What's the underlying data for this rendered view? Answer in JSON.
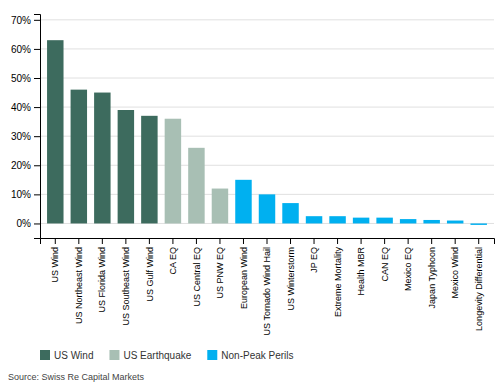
{
  "chart_data": {
    "type": "bar",
    "stacked": true,
    "grid": true,
    "legend": "bottom",
    "categories": [
      "US Wind",
      "US Northeast Wind",
      "US Florida Wind",
      "US Southeast Wind",
      "US Gulf Wind",
      "CA EQ",
      "US Central EQ",
      "US PNW EQ",
      "European Wind",
      "US Tornado Wind Hail",
      "US Winterstorm",
      "JP EQ",
      "Extreme Mortality",
      "Health MBR",
      "CAN EQ",
      "Mexico EQ",
      "Japan Typhoon",
      "Mexico Wind",
      "Longevity Differential"
    ],
    "series": [
      {
        "name": "US Wind",
        "color": "#3d6b5e",
        "values": [
          63,
          46,
          45,
          39,
          37,
          null,
          null,
          null,
          null,
          null,
          null,
          null,
          null,
          null,
          null,
          null,
          null,
          null,
          null
        ]
      },
      {
        "name": "US Earthquake",
        "color": "#a8bfb4",
        "values": [
          null,
          null,
          null,
          null,
          null,
          36,
          26,
          12,
          null,
          null,
          null,
          null,
          null,
          null,
          null,
          null,
          null,
          null,
          null
        ]
      },
      {
        "name": "Non-Peak Perils",
        "color": "#00b0f0",
        "values": [
          null,
          null,
          null,
          null,
          null,
          null,
          null,
          null,
          15,
          10,
          7,
          2.5,
          2.5,
          2,
          2,
          1.5,
          1.2,
          1.0,
          -0.5
        ]
      }
    ],
    "ylim": [
      -5,
      72
    ],
    "yticks": [
      {
        "value": 0,
        "label": "0%"
      },
      {
        "value": 10,
        "label": "10%"
      },
      {
        "value": 20,
        "label": "20%"
      },
      {
        "value": 30,
        "label": "30%"
      },
      {
        "value": 40,
        "label": "40%"
      },
      {
        "value": 50,
        "label": "50%"
      },
      {
        "value": 60,
        "label": "60%"
      },
      {
        "value": 70,
        "label": "70%"
      }
    ],
    "annotations": [
      "Source: Swiss Re Capital Markets"
    ]
  }
}
